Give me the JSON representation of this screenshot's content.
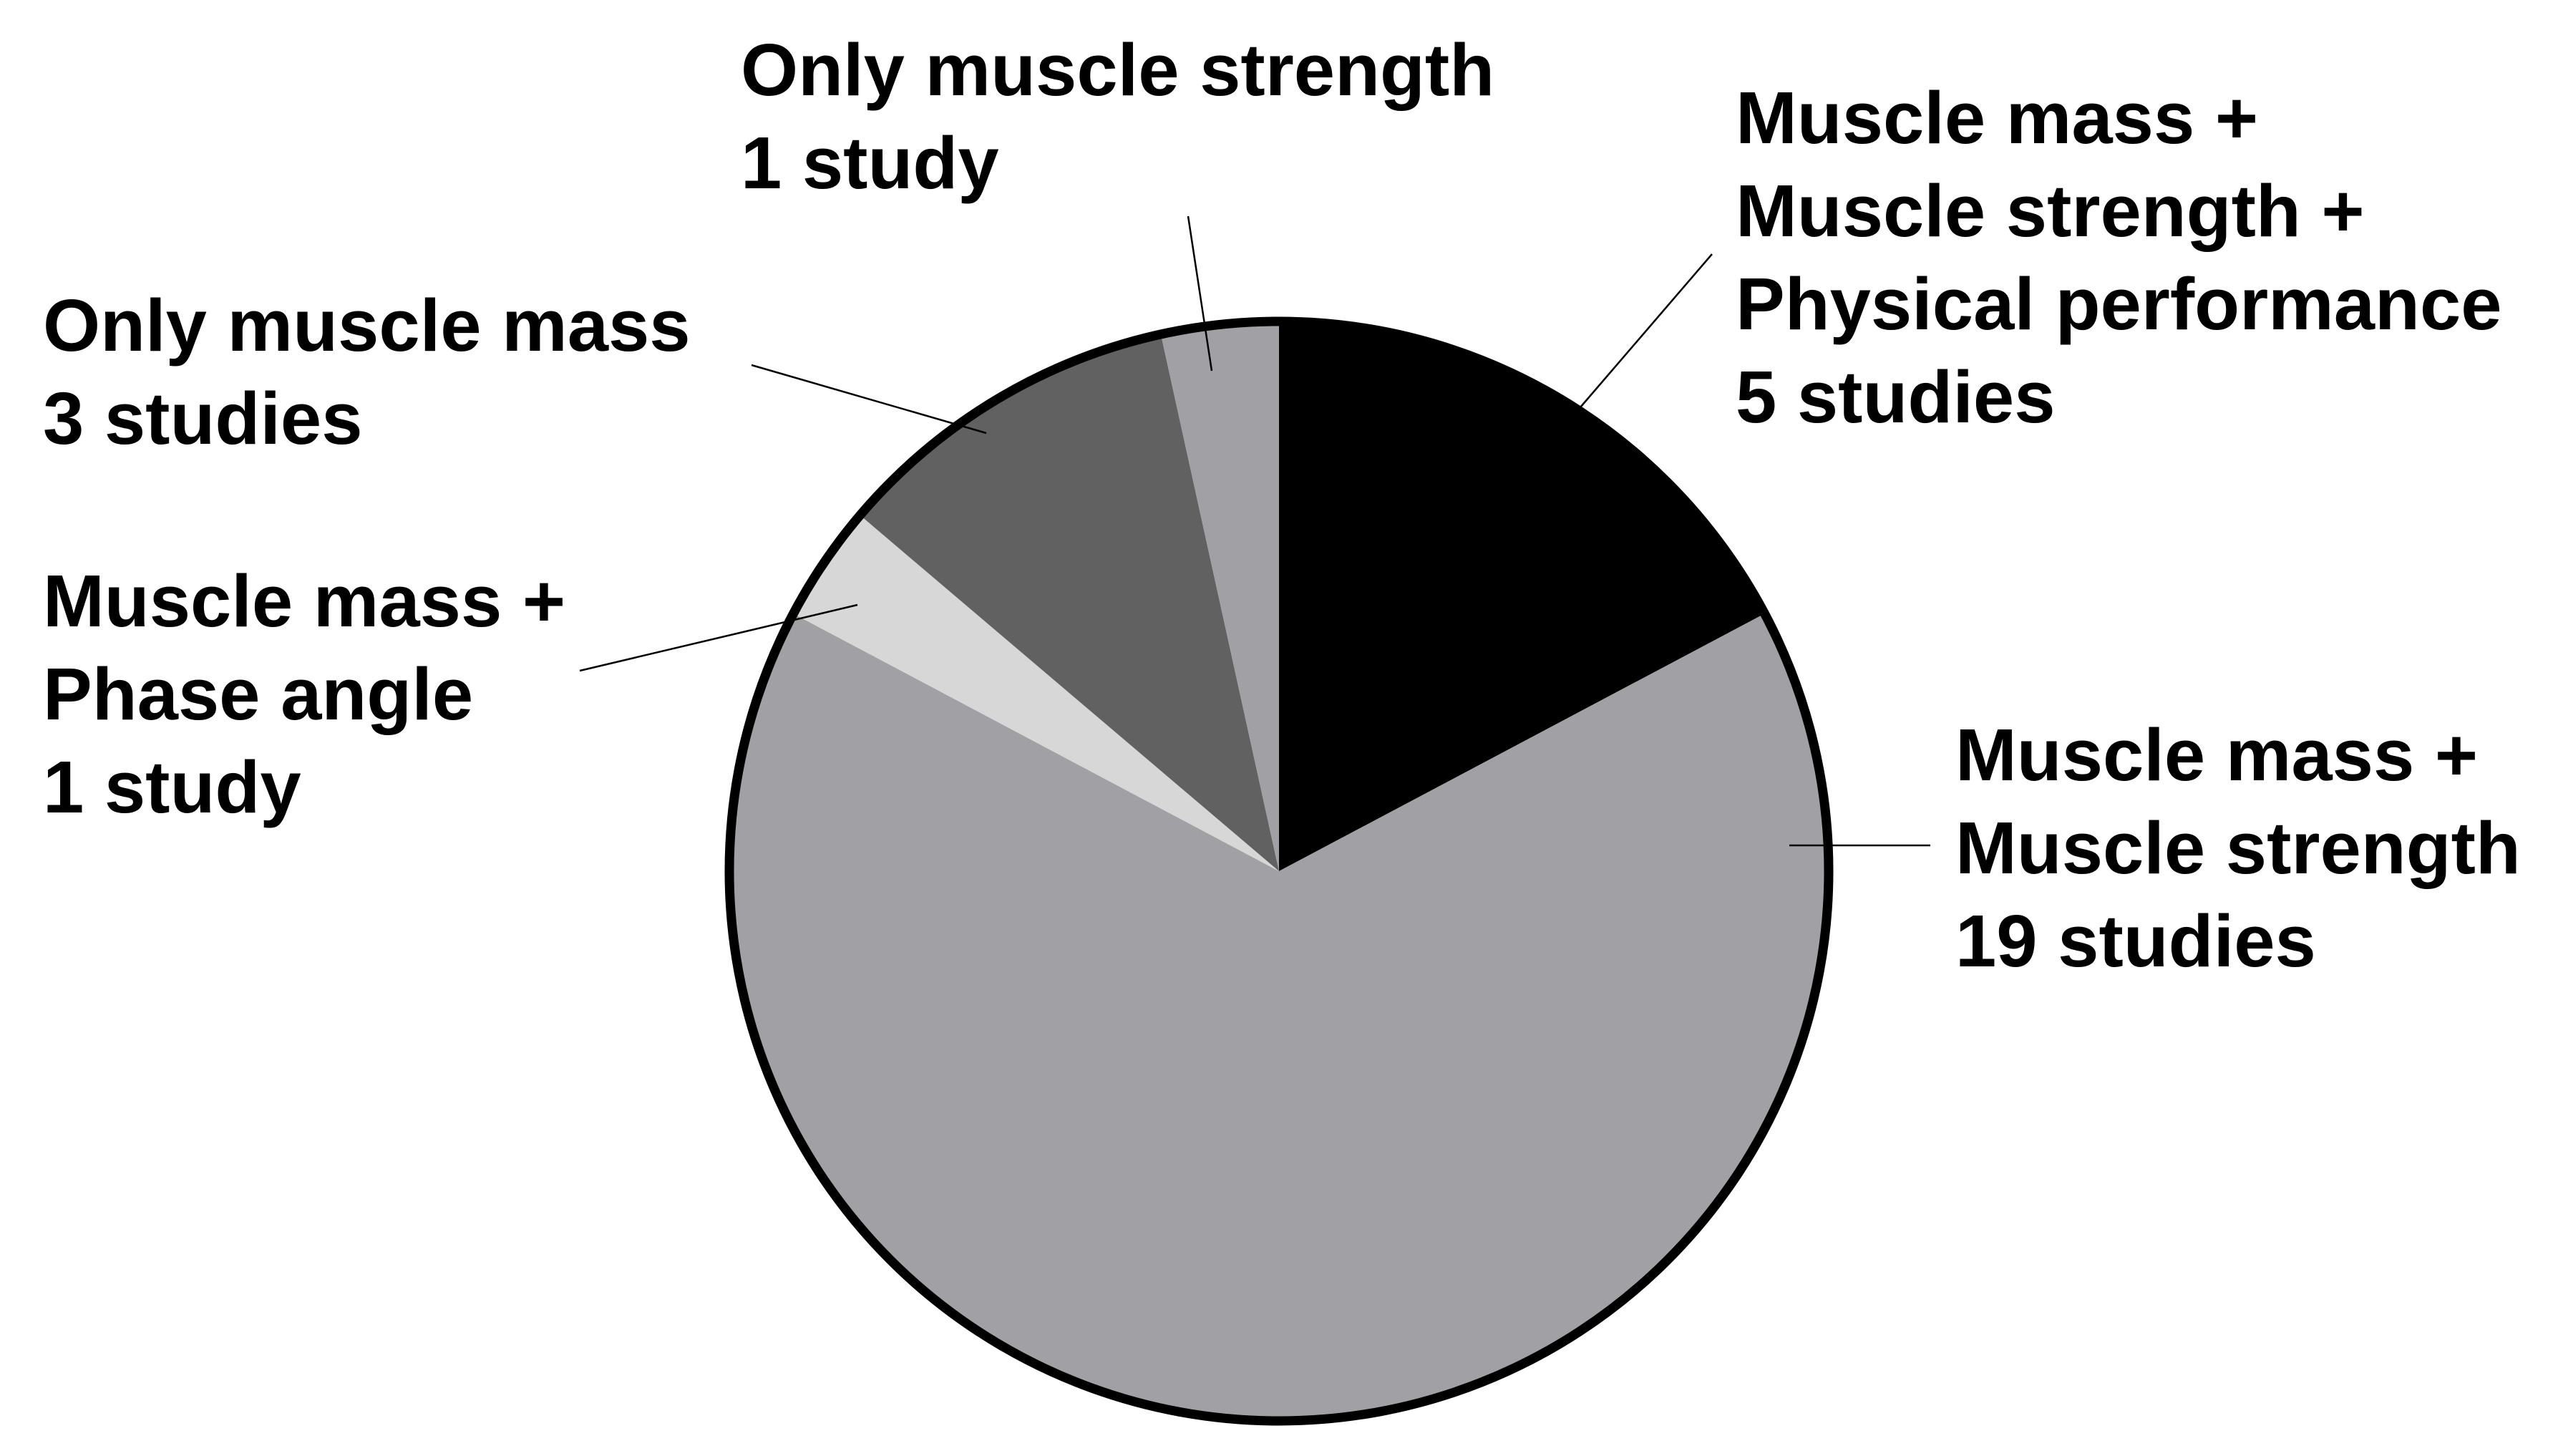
{
  "chart_data": {
    "type": "pie",
    "title": "",
    "unit": "studies",
    "slices": [
      {
        "name": "Muscle mass + Muscle strength + Physical performance",
        "value": 5,
        "color": "#000000",
        "label_lines": [
          "Muscle mass +",
          "Muscle strength +",
          "Physical performance",
          "5 studies"
        ]
      },
      {
        "name": "Muscle mass + Muscle strength",
        "value": 19,
        "color": "#a1a1a5",
        "label_lines": [
          "Muscle mass +",
          "Muscle strength",
          "19 studies"
        ]
      },
      {
        "name": "Muscle mass + Phase angle",
        "value": 1,
        "color": "#d7d7d7",
        "label_lines": [
          "Muscle mass +",
          "Phase angle",
          "1 study"
        ]
      },
      {
        "name": "Only muscle mass",
        "value": 3,
        "color": "#616161",
        "label_lines": [
          "Only muscle mass",
          "3 studies"
        ]
      },
      {
        "name": "Only muscle strength",
        "value": 1,
        "color": "#a1a1a5",
        "label_lines": [
          "Only muscle strength",
          "1 study"
        ]
      }
    ],
    "start_angle": "12 o'clock",
    "direction": "clockwise",
    "legend": "none",
    "border_color": "#000000",
    "leader_line_color": "#000000"
  }
}
